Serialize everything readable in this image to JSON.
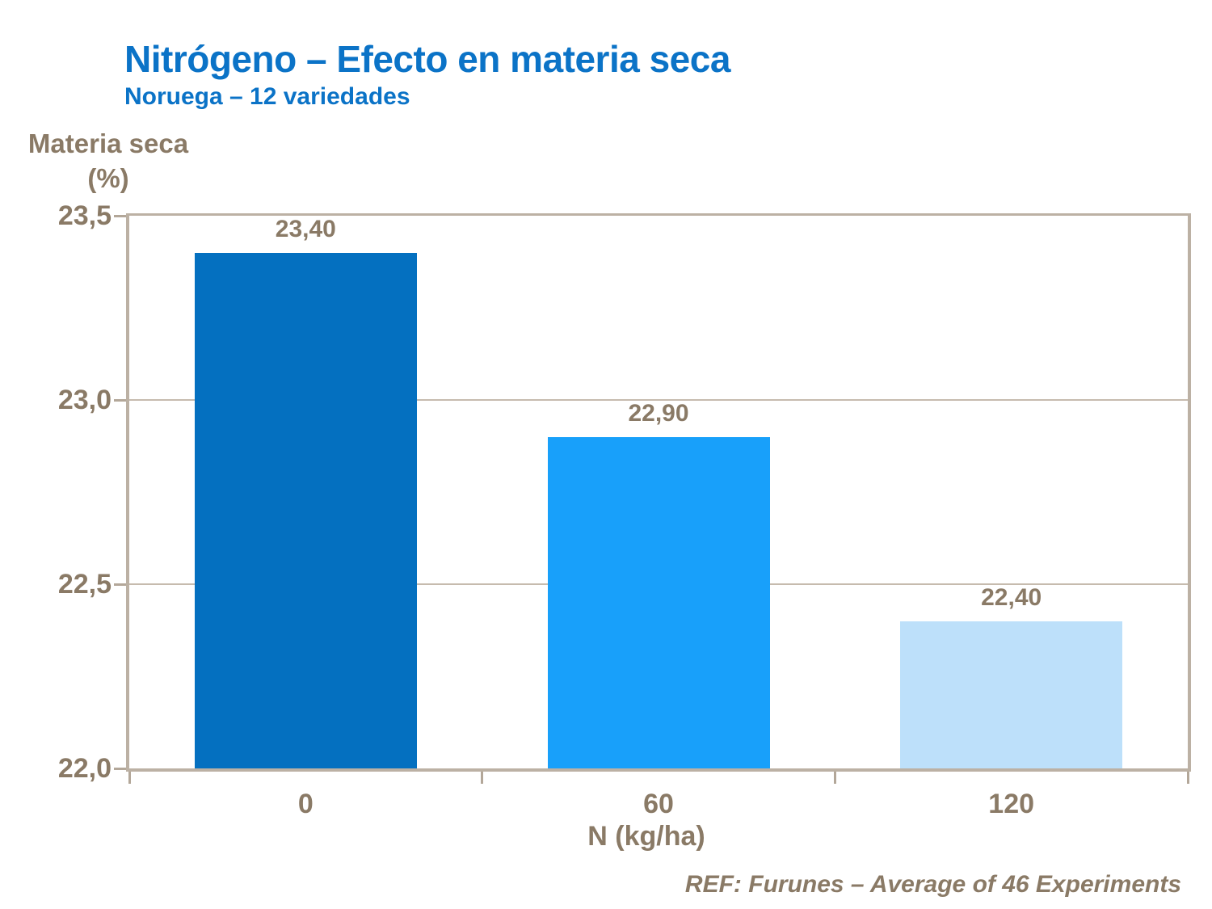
{
  "page": {
    "title": "Nitrógeno – Efecto en materia seca",
    "subtitle": "Noruega – 12 variedades",
    "source": "REF: Furunes – Average of 46 Experiments"
  },
  "colors": {
    "title_blue": "#0b73c7",
    "text_brown": "#8a7a66",
    "frame_tan": "#bcb1a4",
    "gridline_tan": "#c6bbae",
    "bar_colors": [
      "#0470c0",
      "#18a0fa",
      "#bde0fa"
    ]
  },
  "chart_data": {
    "type": "bar",
    "title": "Nitrógeno – Efecto en materia seca",
    "subtitle": "Noruega – 12 variedades",
    "categories": [
      "0",
      "60",
      "120"
    ],
    "values": [
      23.4,
      22.9,
      22.4
    ],
    "value_labels": [
      "23,40",
      "22,90",
      "22,40"
    ],
    "xlabel": "N (kg/ha)",
    "ylabel": "Materia seca (%)",
    "ylabel_line1": "Materia seca",
    "ylabel_line2": "(%)",
    "ylim": [
      22.0,
      23.5
    ],
    "y_ticks": [
      {
        "value": 23.5,
        "label": "23,5"
      },
      {
        "value": 23.0,
        "label": "23,0"
      },
      {
        "value": 22.5,
        "label": "22,5"
      },
      {
        "value": 22.0,
        "label": "22,0"
      }
    ],
    "grid": "horizontal-only-interior",
    "legend": "none",
    "source": "REF: Furunes – Average of 46 Experiments"
  }
}
